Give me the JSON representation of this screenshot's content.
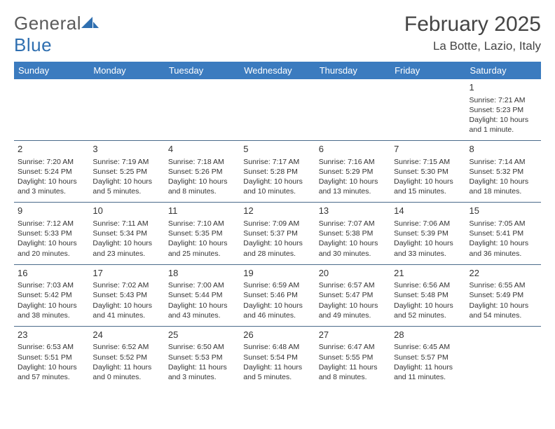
{
  "logo": {
    "word1": "General",
    "word2": "Blue"
  },
  "title": "February 2025",
  "location": "La Botte, Lazio, Italy",
  "colors": {
    "header_bg": "#3b7bbf",
    "header_fg": "#ffffff",
    "rule": "#4a6b8a",
    "logo_gray": "#5a5a5a",
    "logo_blue": "#2f6fb0"
  },
  "dayNames": [
    "Sunday",
    "Monday",
    "Tuesday",
    "Wednesday",
    "Thursday",
    "Friday",
    "Saturday"
  ],
  "weeks": [
    [
      {
        "n": "",
        "sr": "",
        "ss": "",
        "dl": ""
      },
      {
        "n": "",
        "sr": "",
        "ss": "",
        "dl": ""
      },
      {
        "n": "",
        "sr": "",
        "ss": "",
        "dl": ""
      },
      {
        "n": "",
        "sr": "",
        "ss": "",
        "dl": ""
      },
      {
        "n": "",
        "sr": "",
        "ss": "",
        "dl": ""
      },
      {
        "n": "",
        "sr": "",
        "ss": "",
        "dl": ""
      },
      {
        "n": "1",
        "sr": "Sunrise: 7:21 AM",
        "ss": "Sunset: 5:23 PM",
        "dl": "Daylight: 10 hours and 1 minute."
      }
    ],
    [
      {
        "n": "2",
        "sr": "Sunrise: 7:20 AM",
        "ss": "Sunset: 5:24 PM",
        "dl": "Daylight: 10 hours and 3 minutes."
      },
      {
        "n": "3",
        "sr": "Sunrise: 7:19 AM",
        "ss": "Sunset: 5:25 PM",
        "dl": "Daylight: 10 hours and 5 minutes."
      },
      {
        "n": "4",
        "sr": "Sunrise: 7:18 AM",
        "ss": "Sunset: 5:26 PM",
        "dl": "Daylight: 10 hours and 8 minutes."
      },
      {
        "n": "5",
        "sr": "Sunrise: 7:17 AM",
        "ss": "Sunset: 5:28 PM",
        "dl": "Daylight: 10 hours and 10 minutes."
      },
      {
        "n": "6",
        "sr": "Sunrise: 7:16 AM",
        "ss": "Sunset: 5:29 PM",
        "dl": "Daylight: 10 hours and 13 minutes."
      },
      {
        "n": "7",
        "sr": "Sunrise: 7:15 AM",
        "ss": "Sunset: 5:30 PM",
        "dl": "Daylight: 10 hours and 15 minutes."
      },
      {
        "n": "8",
        "sr": "Sunrise: 7:14 AM",
        "ss": "Sunset: 5:32 PM",
        "dl": "Daylight: 10 hours and 18 minutes."
      }
    ],
    [
      {
        "n": "9",
        "sr": "Sunrise: 7:12 AM",
        "ss": "Sunset: 5:33 PM",
        "dl": "Daylight: 10 hours and 20 minutes."
      },
      {
        "n": "10",
        "sr": "Sunrise: 7:11 AM",
        "ss": "Sunset: 5:34 PM",
        "dl": "Daylight: 10 hours and 23 minutes."
      },
      {
        "n": "11",
        "sr": "Sunrise: 7:10 AM",
        "ss": "Sunset: 5:35 PM",
        "dl": "Daylight: 10 hours and 25 minutes."
      },
      {
        "n": "12",
        "sr": "Sunrise: 7:09 AM",
        "ss": "Sunset: 5:37 PM",
        "dl": "Daylight: 10 hours and 28 minutes."
      },
      {
        "n": "13",
        "sr": "Sunrise: 7:07 AM",
        "ss": "Sunset: 5:38 PM",
        "dl": "Daylight: 10 hours and 30 minutes."
      },
      {
        "n": "14",
        "sr": "Sunrise: 7:06 AM",
        "ss": "Sunset: 5:39 PM",
        "dl": "Daylight: 10 hours and 33 minutes."
      },
      {
        "n": "15",
        "sr": "Sunrise: 7:05 AM",
        "ss": "Sunset: 5:41 PM",
        "dl": "Daylight: 10 hours and 36 minutes."
      }
    ],
    [
      {
        "n": "16",
        "sr": "Sunrise: 7:03 AM",
        "ss": "Sunset: 5:42 PM",
        "dl": "Daylight: 10 hours and 38 minutes."
      },
      {
        "n": "17",
        "sr": "Sunrise: 7:02 AM",
        "ss": "Sunset: 5:43 PM",
        "dl": "Daylight: 10 hours and 41 minutes."
      },
      {
        "n": "18",
        "sr": "Sunrise: 7:00 AM",
        "ss": "Sunset: 5:44 PM",
        "dl": "Daylight: 10 hours and 43 minutes."
      },
      {
        "n": "19",
        "sr": "Sunrise: 6:59 AM",
        "ss": "Sunset: 5:46 PM",
        "dl": "Daylight: 10 hours and 46 minutes."
      },
      {
        "n": "20",
        "sr": "Sunrise: 6:57 AM",
        "ss": "Sunset: 5:47 PM",
        "dl": "Daylight: 10 hours and 49 minutes."
      },
      {
        "n": "21",
        "sr": "Sunrise: 6:56 AM",
        "ss": "Sunset: 5:48 PM",
        "dl": "Daylight: 10 hours and 52 minutes."
      },
      {
        "n": "22",
        "sr": "Sunrise: 6:55 AM",
        "ss": "Sunset: 5:49 PM",
        "dl": "Daylight: 10 hours and 54 minutes."
      }
    ],
    [
      {
        "n": "23",
        "sr": "Sunrise: 6:53 AM",
        "ss": "Sunset: 5:51 PM",
        "dl": "Daylight: 10 hours and 57 minutes."
      },
      {
        "n": "24",
        "sr": "Sunrise: 6:52 AM",
        "ss": "Sunset: 5:52 PM",
        "dl": "Daylight: 11 hours and 0 minutes."
      },
      {
        "n": "25",
        "sr": "Sunrise: 6:50 AM",
        "ss": "Sunset: 5:53 PM",
        "dl": "Daylight: 11 hours and 3 minutes."
      },
      {
        "n": "26",
        "sr": "Sunrise: 6:48 AM",
        "ss": "Sunset: 5:54 PM",
        "dl": "Daylight: 11 hours and 5 minutes."
      },
      {
        "n": "27",
        "sr": "Sunrise: 6:47 AM",
        "ss": "Sunset: 5:55 PM",
        "dl": "Daylight: 11 hours and 8 minutes."
      },
      {
        "n": "28",
        "sr": "Sunrise: 6:45 AM",
        "ss": "Sunset: 5:57 PM",
        "dl": "Daylight: 11 hours and 11 minutes."
      },
      {
        "n": "",
        "sr": "",
        "ss": "",
        "dl": ""
      }
    ]
  ]
}
